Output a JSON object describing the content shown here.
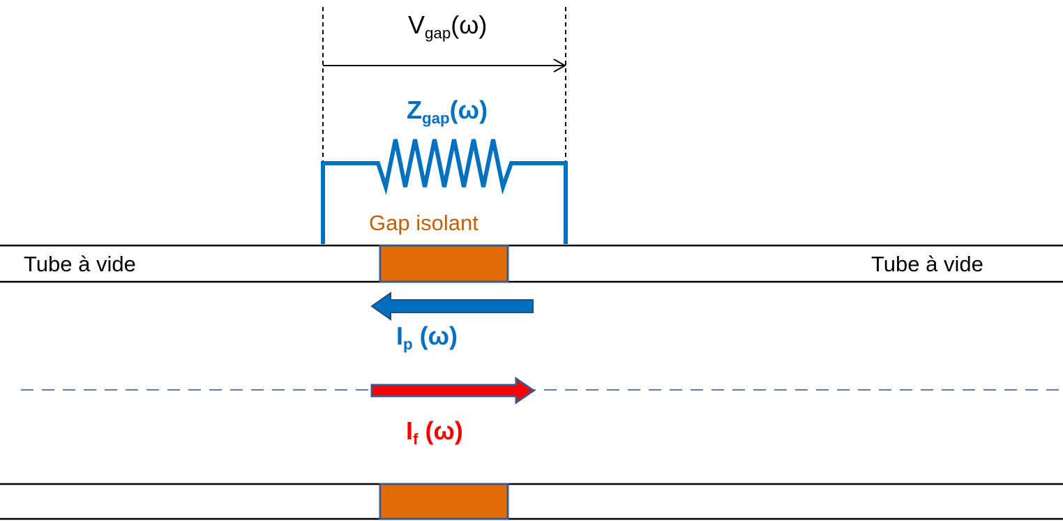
{
  "labels": {
    "v_gap": {
      "main": "V",
      "sub": "gap",
      "arg": "(ω)"
    },
    "z_gap": {
      "main": "Z",
      "sub": "gap",
      "arg": "(ω)"
    },
    "gap_isolant": "Gap isolant",
    "tube_left": "Tube à vide",
    "tube_right": "Tube à vide",
    "i_p": {
      "main": "I",
      "sub": "p",
      "arg": " (ω)"
    },
    "i_f": {
      "main": "I",
      "sub": "f",
      "arg": " (ω)"
    }
  },
  "colors": {
    "line": "#000000",
    "circuit": "#0070C0",
    "gap_fill": "#E36C09",
    "gap_border": "#3A5A8C",
    "gap_text": "#C0600A",
    "current_p": "#0070C0",
    "current_f": "#FF0000",
    "beam_axis": "#4F81BD"
  },
  "icons": {
    "resistor": "resistor-zigzag-icon",
    "arrow_p": "arrow-left-icon",
    "arrow_f": "arrow-right-icon"
  }
}
